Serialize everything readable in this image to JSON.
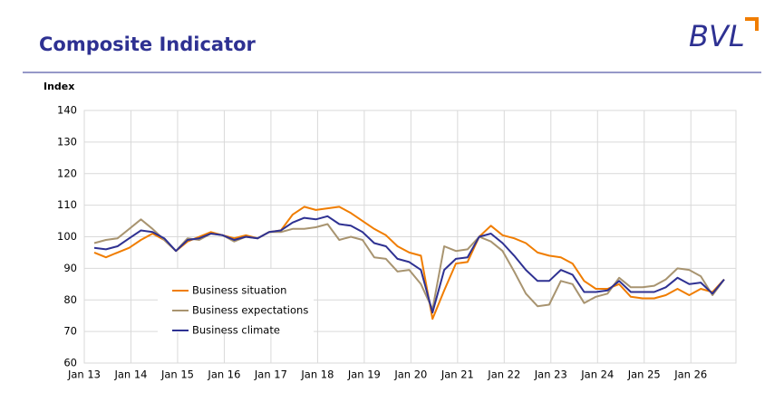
{
  "header": {
    "title": "Composite Indicator",
    "logo": "BVL"
  },
  "chart_data": {
    "type": "line",
    "ylabel": "Index",
    "categories": [
      "Jan 13",
      null,
      null,
      null,
      "Jan 14",
      null,
      null,
      null,
      "Jan 15",
      null,
      null,
      null,
      "Jan 16",
      null,
      null,
      null,
      "Jan 17",
      null,
      null,
      null,
      "Jan 18",
      null,
      null,
      null,
      "Jan 19",
      null,
      null,
      null,
      "Jan 20",
      null,
      null,
      null,
      "Jan 21",
      null,
      null,
      null,
      "Jan 22",
      null,
      null,
      null,
      "Jan 23",
      null,
      null,
      null,
      "Jan 24",
      null,
      null,
      null,
      "Jan 25",
      null,
      null,
      null,
      "Jan 26",
      null,
      null
    ],
    "series": [
      {
        "name": "Business situation",
        "color": "#f07d00",
        "values": [
          95,
          93.5,
          95,
          96.5,
          99,
          101,
          99,
          95.5,
          98.5,
          100,
          101.5,
          100.5,
          99.5,
          100.5,
          99.5,
          101.5,
          102,
          107,
          109.5,
          108.5,
          109,
          109.5,
          107.5,
          105,
          102.5,
          100.5,
          97,
          95,
          94,
          74,
          83,
          91.5,
          92,
          100,
          103.5,
          100.5,
          99.5,
          98,
          95,
          94,
          93.5,
          91.5,
          86,
          83.5,
          83.5,
          85,
          81,
          80.5,
          80.5,
          81.5,
          83.5,
          81.5,
          83.5,
          82.5,
          86.5
        ]
      },
      {
        "name": "Business expectations",
        "color": "#a89470",
        "values": [
          98,
          99,
          99.5,
          102.5,
          105.5,
          102.5,
          99,
          95.5,
          99.5,
          99,
          101,
          100.5,
          98.5,
          100,
          99.5,
          101.5,
          101.5,
          102.5,
          102.5,
          103,
          104,
          99,
          100,
          99,
          93.5,
          93,
          89,
          89.5,
          85,
          77,
          97,
          95.5,
          96,
          100,
          98.5,
          95.5,
          89,
          82,
          78,
          78.5,
          86,
          85,
          79,
          81,
          82,
          87,
          84,
          84,
          84.5,
          86.5,
          90,
          89.5,
          87.5,
          81.5,
          86.5
        ]
      },
      {
        "name": "Business climate",
        "color": "#2e3192",
        "values": [
          96.5,
          96,
          97,
          99.5,
          102,
          101.5,
          99.5,
          95.5,
          99,
          99.5,
          101,
          100.5,
          99,
          100,
          99.5,
          101.5,
          102,
          104.5,
          106,
          105.5,
          106.5,
          104,
          103.5,
          101.5,
          98,
          97,
          93,
          92,
          89.5,
          76,
          89.5,
          93,
          93.5,
          100,
          101,
          98,
          94,
          89.5,
          86,
          86,
          89.5,
          88,
          82.5,
          82.5,
          83,
          86,
          82.5,
          82.5,
          82.5,
          84,
          87,
          85,
          85.5,
          82,
          86.5
        ]
      }
    ],
    "ylim": [
      60,
      140
    ],
    "yticks": [
      60,
      70,
      80,
      90,
      100,
      110,
      120,
      130,
      140
    ],
    "grid": true,
    "legend": "lower left"
  }
}
